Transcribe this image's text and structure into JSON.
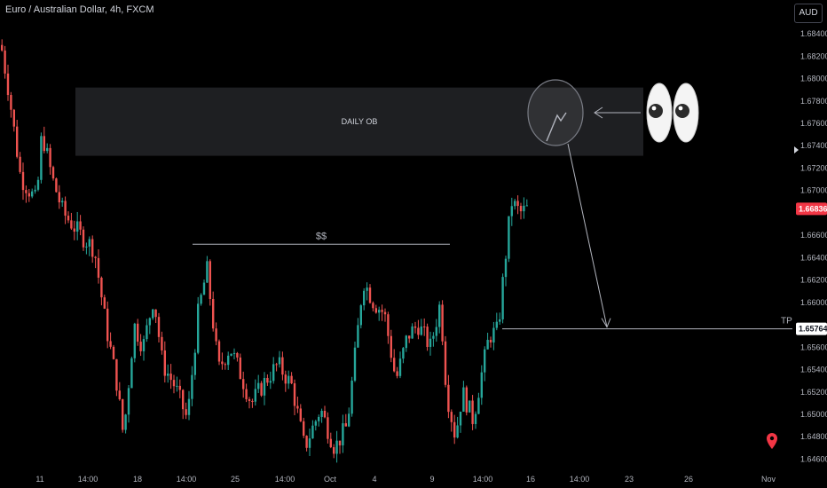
{
  "header": {
    "symbol_title": "Euro / Australian Dollar, 4h, FXCM",
    "currency": "AUD"
  },
  "colors": {
    "up": "#26a69a",
    "down": "#ef5350",
    "zone_fill": "#1e1f22",
    "line": "#b2b5be",
    "current_price_bg": "#f23645",
    "tp_price_bg": "#ffffff",
    "location_marker": "#f23645"
  },
  "chart_data": {
    "type": "candlestick",
    "title": "Euro / Australian Dollar, 4h, FXCM",
    "ylim": [
      1.6458,
      1.6848
    ],
    "y_ticks": [
      "1.68400",
      "1.68200",
      "1.68000",
      "1.67800",
      "1.67600",
      "1.67400",
      "1.67200",
      "1.67000",
      "1.66600",
      "1.66400",
      "1.66200",
      "1.66000",
      "1.65600",
      "1.65400",
      "1.65200",
      "1.65000",
      "1.64800",
      "1.64600"
    ],
    "x_ticks": [
      "11",
      "14:00",
      "18",
      "14:00",
      "25",
      "14:00",
      "Oct",
      "4",
      "9",
      "14:00",
      "16",
      "14:00",
      "23",
      "26",
      "Nov"
    ],
    "current_price": "1.66836",
    "annotations": {
      "zone_label": "DAILY OB",
      "zone_top": 1.6792,
      "zone_bottom": 1.6731,
      "liquidity_label": "$$",
      "liquidity_level": 1.6652,
      "tp_label": "TP",
      "tp_level": 1.65764,
      "tp_price": "1.65764",
      "eyes_icon": "eyes-emoji"
    }
  }
}
